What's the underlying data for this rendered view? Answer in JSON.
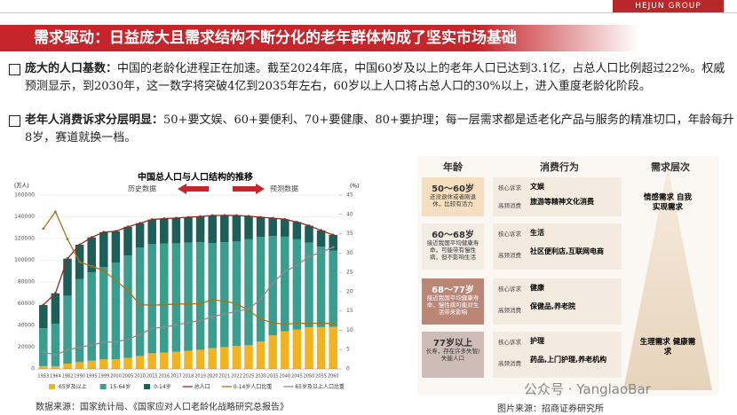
{
  "header": {
    "brand": "HEJUN GROUP"
  },
  "title": "需求驱动：日益庞大且需求结构不断分化的老年群体构成了坚实市场基础",
  "bullets": [
    {
      "label": "庞大的人口基数：",
      "text": "中国的老龄化进程正在加速。截至2024年底，中国60岁及以上的老年人口已达到3.1亿，占总人口比例超过22%。权威预测显示，到2030年，这一数字将突破4亿到2035年左右，60岁以上人口将占总人口的30%以上，进入重度老龄化阶段。"
    },
    {
      "label": "老年人消费诉求分层明显：",
      "text": "50+要文娱、60+要便利、70+要健康、80+要护理；每一层需求都是适老化产品与服务的精准切口，年龄每升8岁，赛道就换一档。"
    }
  ],
  "chart_data": {
    "type": "bar",
    "title": "中国总人口与人口结构的推移",
    "history_label": "历史数据",
    "forecast_label": "预测数据",
    "y_unit": "(万人)",
    "y2_unit": "(%)",
    "categories": [
      "1953",
      "1964",
      "1982",
      "1990",
      "1995",
      "1999",
      "2000",
      "2005",
      "2010",
      "2015",
      "2016",
      "2017",
      "2018",
      "2019",
      "2020",
      "2021",
      "2022",
      "2025",
      "2030",
      "2035",
      "2040",
      "2045",
      "2050",
      "2055",
      "2060"
    ],
    "series": [
      {
        "name": "65岁及以上",
        "kind": "bar",
        "color": "#f2b321",
        "values": [
          2600,
          2500,
          4900,
          6300,
          7500,
          8700,
          8800,
          10100,
          11900,
          14400,
          15000,
          15800,
          16700,
          17600,
          19100,
          20100,
          21000,
          21800,
          25100,
          30800,
          34700,
          36300,
          38300,
          38500,
          38800
        ]
      },
      {
        "name": "15-64岁",
        "kind": "bar",
        "color": "#3a9e8f",
        "values": [
          34900,
          39100,
          62500,
          76300,
          81400,
          85200,
          88900,
          94200,
          99900,
          100400,
          100300,
          99800,
          99400,
          99000,
          96800,
          96500,
          96300,
          97500,
          96500,
          91500,
          87000,
          83000,
          78000,
          74000,
          70000
        ]
      },
      {
        "name": "0-14岁",
        "kind": "bar",
        "color": "#1d5e58",
        "values": [
          21300,
          28000,
          34100,
          31700,
          32200,
          32000,
          29000,
          26500,
          22300,
          22700,
          23000,
          23300,
          23500,
          23700,
          25300,
          24700,
          23900,
          21300,
          18000,
          16500,
          16000,
          15900,
          15500,
          15000,
          14500
        ]
      },
      {
        "name": "总人口",
        "kind": "line",
        "color": "#8e2b22",
        "values": [
          58800,
          69600,
          101500,
          114300,
          121100,
          125900,
          126700,
          130800,
          134100,
          137500,
          138300,
          138900,
          139600,
          140300,
          141200,
          141300,
          141200,
          140600,
          139600,
          138800,
          137700,
          135200,
          131800,
          127500,
          123300
        ]
      },
      {
        "name": "0-14岁人口比重",
        "kind": "line",
        "axis": "y2",
        "color": "#a3741e",
        "values": [
          36.3,
          40.7,
          33.6,
          27.7,
          26.6,
          25.4,
          22.9,
          20.3,
          16.6,
          16.5,
          16.6,
          16.8,
          16.8,
          16.9,
          17.9,
          17.5,
          16.9,
          15.1,
          12.9,
          11.9,
          11.6,
          11.8,
          11.8,
          11.8,
          11.8
        ]
      },
      {
        "name": "65岁及以上人口比重",
        "kind": "line",
        "axis": "y2",
        "color": "#8a8a8a",
        "values": [
          4.4,
          3.6,
          4.9,
          5.6,
          6.2,
          6.9,
          7.0,
          7.7,
          8.9,
          10.5,
          10.8,
          11.4,
          12.0,
          12.5,
          13.5,
          14.2,
          14.9,
          15.5,
          18.0,
          22.2,
          25.2,
          26.8,
          29.1,
          30.2,
          31.5
        ]
      }
    ],
    "ylim": [
      0,
      160000
    ],
    "yticks": [
      0,
      20000,
      40000,
      60000,
      80000,
      100000,
      120000,
      140000,
      160000
    ],
    "y2lim": [
      0,
      45
    ],
    "y2ticks": [
      0,
      5,
      10,
      15,
      20,
      25,
      30,
      35,
      40,
      45
    ],
    "grid": true
  },
  "chart_source": "数据来源：国家统计局、《国家应对人口老龄化战略研究总报告》",
  "diagram": {
    "headers": [
      "年龄",
      "消费行为",
      "需求层次"
    ],
    "rows": [
      {
        "age": "50～60岁",
        "desc": "还没退休或者刚退休，比较有活力",
        "core_label": "核心诉求",
        "core": "文娱",
        "freq_label": "高频消费",
        "freq": "旅游等精神文化消费"
      },
      {
        "age": "60～68岁",
        "desc": "接近我国平均健康寿命，可能带有慢性病，但不影响生活",
        "core_label": "核心诉求",
        "core": "生活",
        "freq_label": "高频消费",
        "freq": "社区便利店,互联网电商"
      },
      {
        "age": "68～77岁",
        "desc": "接近我国平均健康寿命，慢性病可能对生活带来影响",
        "core_label": "核心诉求",
        "core": "健康",
        "freq_label": "高频消费",
        "freq": "保健品,养老院"
      },
      {
        "age": "77岁以上",
        "desc": "长寿，存在许多失智/失能人口",
        "core_label": "核心诉求",
        "core": "护理",
        "freq_label": "高频消费",
        "freq": "药品,上门护理,养老机构"
      }
    ],
    "needs_top": "情感需求 自我实现需求",
    "needs_bottom": "生理需求 健康需求"
  },
  "diagram_source": "图片来源：招商证券研究所",
  "watermark": "公众号 · YanglaoBar"
}
